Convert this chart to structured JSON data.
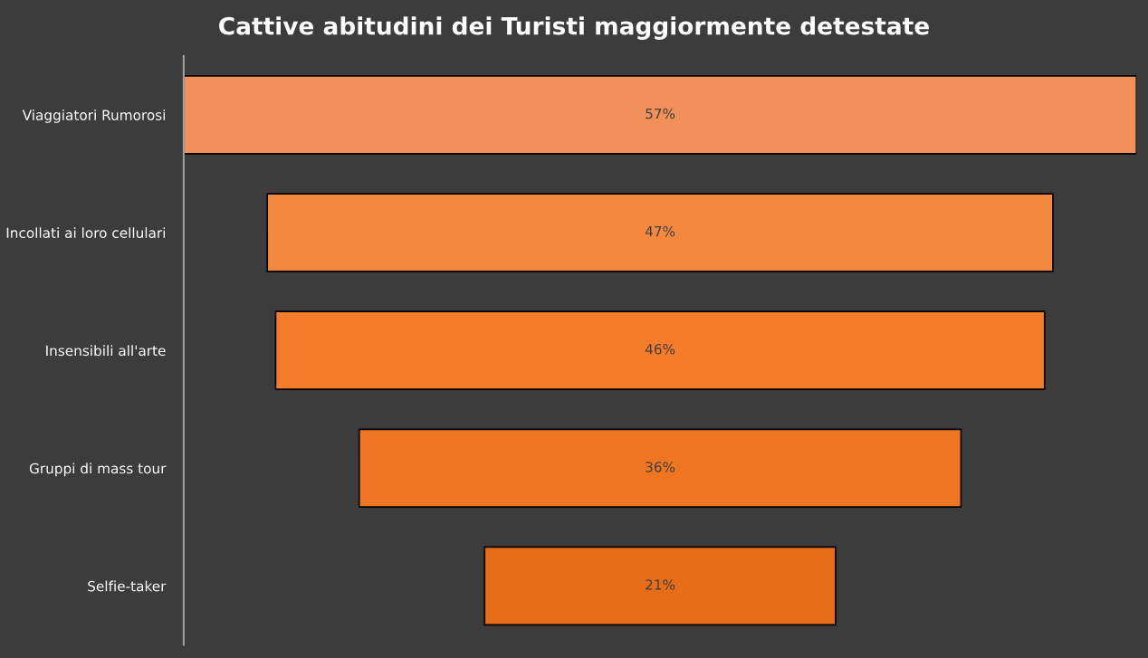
{
  "chart_data": {
    "type": "other",
    "title": "Cattive abitudini dei Turisti maggiormente detestate",
    "categories": [
      "Viaggiatori Rumorosi",
      "Incollati ai loro cellulari",
      "Insensibili all'arte",
      "Gruppi di mass tour",
      "Selfie-taker"
    ],
    "values": [
      57,
      47,
      46,
      36,
      21
    ],
    "value_labels": [
      "57%",
      "47%",
      "46%",
      "36%",
      "21%"
    ],
    "colors": [
      "#f19059",
      "#f5883f",
      "#f47c2b",
      "#ee7522",
      "#e66c17"
    ]
  }
}
